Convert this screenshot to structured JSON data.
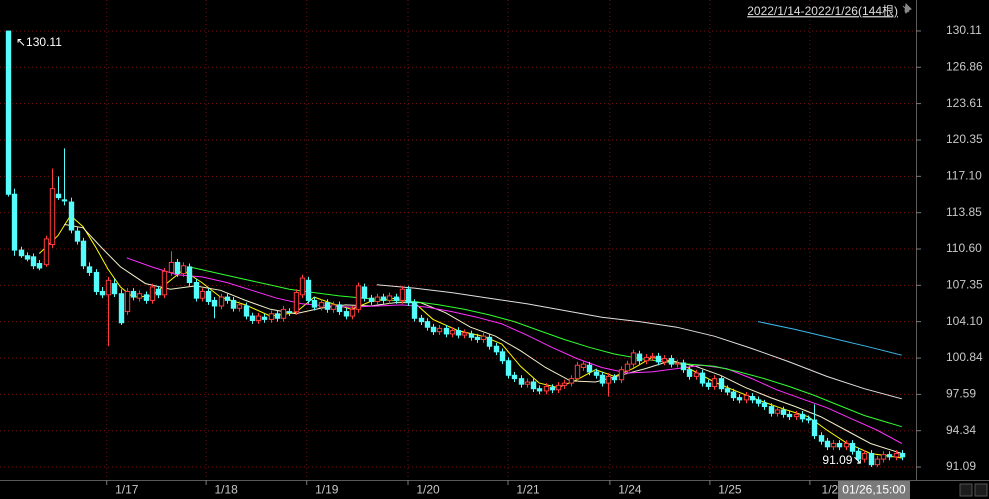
{
  "chart_data": {
    "type": "candlestick",
    "header": "2022/1/14-2022/1/26(144根)",
    "crosshair_label": "01/26,15:00",
    "max_label": "↖130.11",
    "min_label": "91.09↘",
    "up_color": "#ff3c3c",
    "down_color": "#54fcfc",
    "grid_color": "#7a1010",
    "xlim": [
      -1.28,
      145.28
    ],
    "ylim": [
      89.93,
      132.88
    ],
    "yticks": [
      130.11,
      126.86,
      123.61,
      120.35,
      {
        "value": 117.1,
        "label": "117.10"
      },
      113.85,
      {
        "value": 110.6,
        "label": "110.60"
      },
      107.35,
      {
        "value": 104.1,
        "label": "104.10"
      },
      100.84,
      97.59,
      94.34,
      91.09
    ],
    "xticks": [
      {
        "value": 19.0,
        "label": "1/17"
      },
      {
        "value": 34.9,
        "label": "1/18"
      },
      {
        "value": 51.0,
        "label": "1/19"
      },
      {
        "value": 67.2,
        "label": "1/20"
      },
      {
        "value": 83.2,
        "label": "1/21"
      },
      {
        "value": 99.5,
        "label": "1/24"
      },
      {
        "value": 115.5,
        "label": "1/25"
      },
      {
        "value": 131.5,
        "label": "1/2"
      }
    ],
    "grid": true,
    "ohlc": [
      [
        130.1,
        130.11,
        115.3,
        115.5
      ],
      [
        115.5,
        116.0,
        110.0,
        110.5
      ],
      [
        110.5,
        110.8,
        109.8,
        110.0
      ],
      [
        110.0,
        110.3,
        109.5,
        109.7
      ],
      [
        109.9,
        110.2,
        108.8,
        109.1
      ],
      [
        109.3,
        109.6,
        108.7,
        108.9
      ],
      [
        109.2,
        111.8,
        109.0,
        111.5
      ],
      [
        111.0,
        117.8,
        110.7,
        116.0
      ],
      [
        115.5,
        117.1,
        115.0,
        115.2
      ],
      [
        115.0,
        119.6,
        114.5,
        114.9
      ],
      [
        114.8,
        115.2,
        112.0,
        112.3
      ],
      [
        112.2,
        112.6,
        111.0,
        111.3
      ],
      [
        111.3,
        111.6,
        108.8,
        109.1
      ],
      [
        109.0,
        109.4,
        108.2,
        108.5
      ],
      [
        108.5,
        108.8,
        106.5,
        106.8
      ],
      [
        106.8,
        107.2,
        106.2,
        106.5
      ],
      [
        106.5,
        108.1,
        101.9,
        107.8
      ],
      [
        107.5,
        107.9,
        106.3,
        106.6
      ],
      [
        106.6,
        107.0,
        103.8,
        104.0
      ],
      [
        105.0,
        107.1,
        104.7,
        106.8
      ],
      [
        106.8,
        107.1,
        106.0,
        106.3
      ],
      [
        106.2,
        106.9,
        105.9,
        106.6
      ],
      [
        106.5,
        106.8,
        105.7,
        106.0
      ],
      [
        106.0,
        107.5,
        105.7,
        107.2
      ],
      [
        107.0,
        107.3,
        106.2,
        106.5
      ],
      [
        106.5,
        108.9,
        106.2,
        108.6
      ],
      [
        108.5,
        110.4,
        108.2,
        109.4
      ],
      [
        109.4,
        109.7,
        108.1,
        108.4
      ],
      [
        108.4,
        109.4,
        108.1,
        109.1
      ],
      [
        109.0,
        109.3,
        107.3,
        107.6
      ],
      [
        107.6,
        107.9,
        105.9,
        106.2
      ],
      [
        106.2,
        107.1,
        105.9,
        106.8
      ],
      [
        106.8,
        107.1,
        105.6,
        105.9
      ],
      [
        106.0,
        106.3,
        104.4,
        105.5
      ],
      [
        105.5,
        106.6,
        105.2,
        106.3
      ],
      [
        106.3,
        106.6,
        105.7,
        106.0
      ],
      [
        106.0,
        106.3,
        105.0,
        105.3
      ],
      [
        105.3,
        105.9,
        105.0,
        105.6
      ],
      [
        105.5,
        105.8,
        104.3,
        104.6
      ],
      [
        104.6,
        104.9,
        103.9,
        104.2
      ],
      [
        104.2,
        104.9,
        103.9,
        104.6
      ],
      [
        104.5,
        104.8,
        104.0,
        104.3
      ],
      [
        104.3,
        105.1,
        104.0,
        104.8
      ],
      [
        104.8,
        105.1,
        104.1,
        104.4
      ],
      [
        104.4,
        105.5,
        104.1,
        105.2
      ],
      [
        105.0,
        105.3,
        104.6,
        104.9
      ],
      [
        105.0,
        107.0,
        104.7,
        106.7
      ],
      [
        106.5,
        108.3,
        106.2,
        108.0
      ],
      [
        107.8,
        108.1,
        105.7,
        106.0
      ],
      [
        106.0,
        106.3,
        105.1,
        105.4
      ],
      [
        105.4,
        106.1,
        105.1,
        105.8
      ],
      [
        105.8,
        106.1,
        104.9,
        105.2
      ],
      [
        105.2,
        105.9,
        104.9,
        105.6
      ],
      [
        105.6,
        105.9,
        104.7,
        105.0
      ],
      [
        105.0,
        105.3,
        104.3,
        104.6
      ],
      [
        104.6,
        105.5,
        104.3,
        105.2
      ],
      [
        105.2,
        107.6,
        104.9,
        107.3
      ],
      [
        107.2,
        107.5,
        105.9,
        106.2
      ],
      [
        106.2,
        106.5,
        105.6,
        105.9
      ],
      [
        105.9,
        106.6,
        105.6,
        106.3
      ],
      [
        106.3,
        106.6,
        105.7,
        106.0
      ],
      [
        106.0,
        106.7,
        105.7,
        106.4
      ],
      [
        106.3,
        106.6,
        105.7,
        106.0
      ],
      [
        106.0,
        107.3,
        105.7,
        107.0
      ],
      [
        107.0,
        107.3,
        105.5,
        105.8
      ],
      [
        105.8,
        106.1,
        104.1,
        104.4
      ],
      [
        104.4,
        104.7,
        103.8,
        104.1
      ],
      [
        104.1,
        104.4,
        103.3,
        103.6
      ],
      [
        103.6,
        103.9,
        102.9,
        103.2
      ],
      [
        103.2,
        103.8,
        102.9,
        103.5
      ],
      [
        103.5,
        103.8,
        102.7,
        103.0
      ],
      [
        103.0,
        103.6,
        102.7,
        103.3
      ],
      [
        103.3,
        103.6,
        102.6,
        102.9
      ],
      [
        102.9,
        103.4,
        102.6,
        103.1
      ],
      [
        103.0,
        103.3,
        102.4,
        102.7
      ],
      [
        102.7,
        103.0,
        102.2,
        102.5
      ],
      [
        102.5,
        103.1,
        102.2,
        102.8
      ],
      [
        102.7,
        103.0,
        101.6,
        101.9
      ],
      [
        101.9,
        102.2,
        101.1,
        101.4
      ],
      [
        101.4,
        101.7,
        100.3,
        100.6
      ],
      [
        100.6,
        100.9,
        99.0,
        99.3
      ],
      [
        99.3,
        99.6,
        98.7,
        99.0
      ],
      [
        99.0,
        99.3,
        98.2,
        98.5
      ],
      [
        98.5,
        99.0,
        98.2,
        98.7
      ],
      [
        98.7,
        99.0,
        97.8,
        98.1
      ],
      [
        98.1,
        98.4,
        97.6,
        97.9
      ],
      [
        97.9,
        98.6,
        97.6,
        98.3
      ],
      [
        98.2,
        98.5,
        97.7,
        98.0
      ],
      [
        98.0,
        98.7,
        97.7,
        98.4
      ],
      [
        98.4,
        98.9,
        98.1,
        98.6
      ],
      [
        98.6,
        99.3,
        98.3,
        99.0
      ],
      [
        99.0,
        100.5,
        98.7,
        100.2
      ],
      [
        100.0,
        100.6,
        99.7,
        100.3
      ],
      [
        100.2,
        100.5,
        99.3,
        99.6
      ],
      [
        99.6,
        99.9,
        99.0,
        99.3
      ],
      [
        99.3,
        99.6,
        98.3,
        98.6
      ],
      [
        98.6,
        99.5,
        97.4,
        99.2
      ],
      [
        99.1,
        99.4,
        98.6,
        98.9
      ],
      [
        98.9,
        100.1,
        98.6,
        99.8
      ],
      [
        99.7,
        100.6,
        99.4,
        100.3
      ],
      [
        100.3,
        101.6,
        100.0,
        101.3
      ],
      [
        101.2,
        101.5,
        100.3,
        100.6
      ],
      [
        100.6,
        101.2,
        100.3,
        100.9
      ],
      [
        100.9,
        101.3,
        100.6,
        101.0
      ],
      [
        101.0,
        101.3,
        100.2,
        100.5
      ],
      [
        100.5,
        101.1,
        100.2,
        100.8
      ],
      [
        100.8,
        101.1,
        100.0,
        100.3
      ],
      [
        100.3,
        100.7,
        100.0,
        100.4
      ],
      [
        100.4,
        100.7,
        99.5,
        99.8
      ],
      [
        99.8,
        100.1,
        98.9,
        99.2
      ],
      [
        99.2,
        99.8,
        98.9,
        99.5
      ],
      [
        99.5,
        99.8,
        98.3,
        98.6
      ],
      [
        98.6,
        98.9,
        98.0,
        98.3
      ],
      [
        98.3,
        99.3,
        98.0,
        99.0
      ],
      [
        99.0,
        99.3,
        97.8,
        98.1
      ],
      [
        98.1,
        98.4,
        97.5,
        97.8
      ],
      [
        97.8,
        98.1,
        97.0,
        97.3
      ],
      [
        97.3,
        97.6,
        96.8,
        97.1
      ],
      [
        97.1,
        97.8,
        96.8,
        97.5
      ],
      [
        97.4,
        97.7,
        96.8,
        97.1
      ],
      [
        97.1,
        97.4,
        96.5,
        96.8
      ],
      [
        96.8,
        97.1,
        96.2,
        96.5
      ],
      [
        96.5,
        96.8,
        95.6,
        95.9
      ],
      [
        95.9,
        96.5,
        95.6,
        96.2
      ],
      [
        96.2,
        96.5,
        95.5,
        95.8
      ],
      [
        95.8,
        96.1,
        95.3,
        95.6
      ],
      [
        95.6,
        96.1,
        95.3,
        95.8
      ],
      [
        95.8,
        96.1,
        95.1,
        95.4
      ],
      [
        95.4,
        95.7,
        95.0,
        95.3
      ],
      [
        95.3,
        96.7,
        93.6,
        93.9
      ],
      [
        93.9,
        94.2,
        93.1,
        93.4
      ],
      [
        93.4,
        93.7,
        92.6,
        92.9
      ],
      [
        92.9,
        93.5,
        92.6,
        93.2
      ],
      [
        93.2,
        93.5,
        92.6,
        92.9
      ],
      [
        92.9,
        93.5,
        92.6,
        93.2
      ],
      [
        93.2,
        93.5,
        92.2,
        92.5
      ],
      [
        92.5,
        92.8,
        91.5,
        91.8
      ],
      [
        91.8,
        92.6,
        91.5,
        92.3
      ],
      [
        92.3,
        92.6,
        91.09,
        91.3
      ],
      [
        91.3,
        92.1,
        91.1,
        91.8
      ],
      [
        91.8,
        92.5,
        91.5,
        92.2
      ],
      [
        92.2,
        92.5,
        91.7,
        92.0
      ],
      [
        92.0,
        92.6,
        91.7,
        92.3
      ],
      [
        92.3,
        92.6,
        91.7,
        92.0
      ]
    ],
    "moving_averages": [
      {
        "color": "#ffff00",
        "x": [
          5,
          8,
          10,
          12,
          14,
          16,
          18,
          20,
          23,
          26,
          28,
          31,
          34,
          38,
          42,
          46,
          49,
          52,
          55,
          58,
          62,
          65,
          68,
          72,
          76,
          79,
          82,
          85,
          88,
          91,
          94,
          97,
          100,
          103,
          107,
          110,
          113,
          116,
          120,
          124,
          128,
          131,
          134,
          138,
          143
        ],
        "values": [
          110.2,
          111.8,
          113.6,
          112.6,
          110.8,
          108.8,
          107.2,
          106.3,
          106.4,
          107.8,
          108.7,
          107.6,
          106.3,
          105.6,
          104.6,
          104.9,
          106.3,
          105.7,
          105.2,
          105.9,
          106.2,
          105.8,
          104.3,
          103.3,
          102.8,
          102.1,
          100.1,
          98.6,
          98.2,
          98.9,
          99.8,
          99.2,
          99.9,
          100.9,
          100.5,
          99.6,
          98.7,
          98.0,
          97.1,
          96.3,
          95.6,
          94.4,
          93.3,
          92.3,
          91.9
        ]
      },
      {
        "color": "#f5f0c8",
        "x": [
          9,
          12,
          15,
          18,
          22,
          26,
          30,
          34,
          38,
          42,
          46,
          50,
          54,
          58,
          62,
          66,
          70,
          74,
          78,
          82,
          86,
          90,
          94,
          98,
          102,
          106,
          110,
          114,
          118,
          122,
          126,
          130,
          134,
          138,
          143
        ],
        "values": [
          112.8,
          112.5,
          110.7,
          109.0,
          107.5,
          107.0,
          107.3,
          106.9,
          106.0,
          105.2,
          104.8,
          105.3,
          105.6,
          105.5,
          105.8,
          105.8,
          104.9,
          103.6,
          102.8,
          101.5,
          100.0,
          98.8,
          98.7,
          99.3,
          99.9,
          100.6,
          100.1,
          99.3,
          98.2,
          97.3,
          96.5,
          95.6,
          94.4,
          93.2,
          92.3
        ]
      },
      {
        "color": "#ff30ff",
        "x": [
          19,
          23,
          27,
          31,
          35,
          39,
          43,
          47,
          51,
          55,
          59,
          63,
          67,
          71,
          75,
          79,
          83,
          87,
          91,
          95,
          99,
          103,
          107,
          111,
          115,
          119,
          123,
          127,
          131,
          135,
          139,
          143
        ],
        "values": [
          109.8,
          109.0,
          108.3,
          108.1,
          107.6,
          106.9,
          106.2,
          105.7,
          105.5,
          105.4,
          105.5,
          105.6,
          105.4,
          105.0,
          104.5,
          103.9,
          102.9,
          101.8,
          100.8,
          100.0,
          99.5,
          99.6,
          99.9,
          100.2,
          99.9,
          99.0,
          98.0,
          97.2,
          96.4,
          95.4,
          94.4,
          93.2
        ]
      },
      {
        "color": "#30ff30",
        "x": [
          29,
          33,
          37,
          41,
          45,
          49,
          53,
          57,
          61,
          65,
          69,
          73,
          77,
          81,
          85,
          89,
          93,
          97,
          101,
          105,
          109,
          113,
          117,
          121,
          125,
          129,
          133,
          137,
          143
        ],
        "values": [
          109.0,
          108.5,
          108.0,
          107.5,
          107.0,
          106.7,
          106.4,
          106.2,
          106.0,
          105.9,
          105.6,
          105.2,
          104.7,
          104.1,
          103.3,
          102.5,
          101.8,
          101.2,
          100.8,
          100.5,
          100.3,
          100.1,
          99.6,
          99.0,
          98.3,
          97.5,
          96.6,
          95.7,
          94.7
        ]
      },
      {
        "color": "#e0e0e0",
        "x": [
          59,
          65,
          71,
          77,
          83,
          89,
          95,
          101,
          107,
          113,
          119,
          125,
          131,
          137,
          143
        ],
        "values": [
          107.4,
          107.1,
          106.7,
          106.2,
          105.7,
          105.1,
          104.5,
          104.1,
          103.6,
          102.8,
          101.7,
          100.5,
          99.2,
          98.1,
          97.2
        ]
      },
      {
        "color": "#3cb8e8",
        "x": [
          120,
          126,
          132,
          138,
          143
        ],
        "values": [
          104.1,
          103.4,
          102.6,
          101.8,
          101.1
        ]
      }
    ]
  }
}
